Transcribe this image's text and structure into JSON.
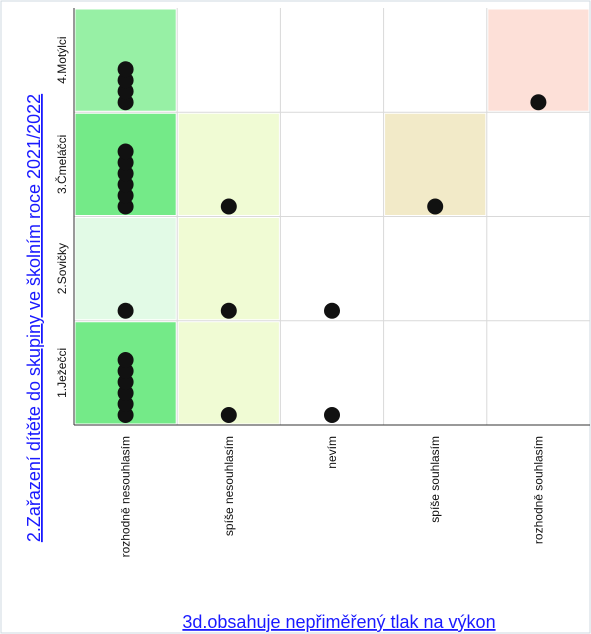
{
  "chart_data": {
    "type": "heatmap",
    "xlabel": "3d.obsahuje nepřiměřený tlak na výkon",
    "ylabel": "2.Zařazení dítěte do skupiny ve školním roce 2021/2022",
    "x_categories": [
      "rozhodně nesouhlasím",
      "spíše nesouhlasím",
      "nevím",
      "spíše souhlasím",
      "rozhodně souhlasím"
    ],
    "y_categories": [
      "1.Ježečci",
      "2.Sovičky",
      "3.Čmeláčci",
      "4.Motýlci"
    ],
    "counts": [
      [
        6,
        1,
        1,
        0,
        0
      ],
      [
        1,
        1,
        1,
        0,
        0
      ],
      [
        6,
        1,
        0,
        1,
        0
      ],
      [
        4,
        0,
        0,
        0,
        1
      ]
    ],
    "cell_colors": [
      [
        "#74ea88",
        "#f0fbd4",
        "#ffffff",
        "#ffffff",
        "#ffffff"
      ],
      [
        "#e2fae6",
        "#f0fbd4",
        "#ffffff",
        "#ffffff",
        "#ffffff"
      ],
      [
        "#74ea88",
        "#f0fbd4",
        "#ffffff",
        "#f2eac8",
        "#ffffff"
      ],
      [
        "#97f0a5",
        "#ffffff",
        "#ffffff",
        "#ffffff",
        "#fde0d8"
      ]
    ],
    "dot_color": "#111111",
    "grid": true
  }
}
